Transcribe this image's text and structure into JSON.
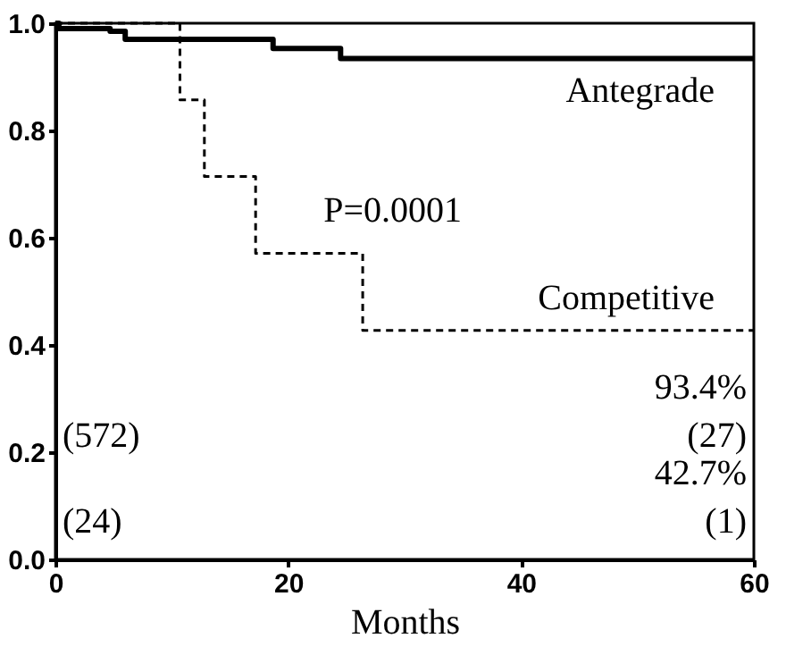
{
  "chart_data": {
    "type": "step",
    "xlabel": "Months",
    "xlim": [
      0,
      60
    ],
    "ylim": [
      0,
      1
    ],
    "xticks": [
      0,
      20,
      40,
      60
    ],
    "yticks": [
      {
        "value": 0,
        "label": "0.0"
      },
      {
        "value": 0.2,
        "label": "0.2"
      },
      {
        "value": 0.4,
        "label": "0.4"
      },
      {
        "value": 0.6,
        "label": "0.6"
      },
      {
        "value": 0.8,
        "label": "0.8"
      },
      {
        "value": 1,
        "label": "1.0"
      }
    ],
    "grid": false,
    "marker": "none",
    "series": [
      {
        "name": "Antegrade",
        "color": "#000000",
        "line_style": "solid",
        "x": [
          0,
          0.3,
          4.7,
          6,
          18.7,
          24.5,
          60
        ],
        "values": [
          1,
          0.99,
          0.985,
          0.97,
          0.953,
          0.934,
          0.934
        ]
      },
      {
        "name": "Competitive",
        "color": "#000000",
        "line_style": "dashed",
        "x": [
          0,
          10.7,
          12.8,
          17.2,
          26.4,
          60
        ],
        "values": [
          1,
          0.857,
          0.714,
          0.571,
          0.427,
          0.427
        ]
      }
    ],
    "annotations": [
      "P=0.0001",
      "93.4%",
      "(27)",
      "42.7%",
      "(1)",
      "(572)",
      "(24)"
    ]
  }
}
